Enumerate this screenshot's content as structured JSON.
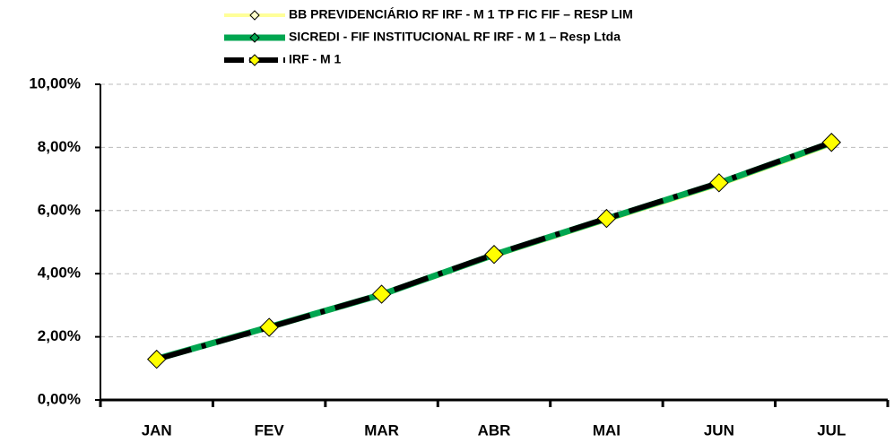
{
  "chart_data": {
    "type": "line",
    "categories": [
      "JAN",
      "FEV",
      "MAR",
      "ABR",
      "MAI",
      "JUN",
      "JUL"
    ],
    "series": [
      {
        "name": "BB PREVIDENCIÁRIO RF IRF - M 1 TP FIC FIF – RESP LIM",
        "color": "#ffff99",
        "values": [
          1.27,
          2.27,
          3.3,
          4.55,
          5.68,
          6.8,
          8.08
        ]
      },
      {
        "name": "SICREDI - FIF INSTITUCIONAL RF IRF - M 1 – Resp Ltda",
        "color": "#00a650",
        "values": [
          1.3,
          2.31,
          3.34,
          4.6,
          5.74,
          6.87,
          8.15
        ]
      },
      {
        "name": "IRF - M 1",
        "color": "#000000",
        "values": [
          1.29,
          2.3,
          3.35,
          4.61,
          5.75,
          6.88,
          8.16
        ]
      }
    ],
    "ylim": [
      0,
      10
    ],
    "yticks": [
      {
        "value": 0,
        "label": "0,00%"
      },
      {
        "value": 2,
        "label": "2,00%"
      },
      {
        "value": 4,
        "label": "4,00%"
      },
      {
        "value": 6,
        "label": "6,00%"
      },
      {
        "value": 8,
        "label": "8,00%"
      },
      {
        "value": 10,
        "label": "10,00%"
      }
    ],
    "grid": true
  }
}
